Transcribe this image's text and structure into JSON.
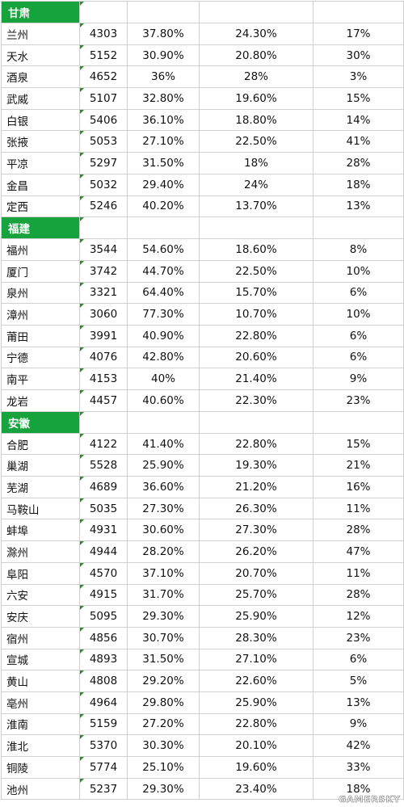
{
  "sections": [
    {
      "region": "甘肃",
      "rows": [
        {
          "city": "兰州",
          "v1": "4303",
          "v2": "37.80%",
          "v3": "24.30%",
          "v4": "17%"
        },
        {
          "city": "天水",
          "v1": "5152",
          "v2": "30.90%",
          "v3": "20.80%",
          "v4": "30%"
        },
        {
          "city": "酒泉",
          "v1": "4652",
          "v2": "36%",
          "v3": "28%",
          "v4": "3%"
        },
        {
          "city": "武威",
          "v1": "5107",
          "v2": "32.80%",
          "v3": "19.60%",
          "v4": "15%"
        },
        {
          "city": "白银",
          "v1": "5406",
          "v2": "36.10%",
          "v3": "18.80%",
          "v4": "14%"
        },
        {
          "city": "张掖",
          "v1": "5053",
          "v2": "27.10%",
          "v3": "22.50%",
          "v4": "41%"
        },
        {
          "city": "平凉",
          "v1": "5297",
          "v2": "31.50%",
          "v3": "18%",
          "v4": "28%"
        },
        {
          "city": "金昌",
          "v1": "5032",
          "v2": "29.40%",
          "v3": "24%",
          "v4": "18%"
        },
        {
          "city": "定西",
          "v1": "5246",
          "v2": "40.20%",
          "v3": "13.70%",
          "v4": "13%"
        }
      ]
    },
    {
      "region": "福建",
      "rows": [
        {
          "city": "福州",
          "v1": "3544",
          "v2": "54.60%",
          "v3": "18.60%",
          "v4": "8%"
        },
        {
          "city": "厦门",
          "v1": "3742",
          "v2": "44.70%",
          "v3": "22.50%",
          "v4": "10%"
        },
        {
          "city": "泉州",
          "v1": "3321",
          "v2": "64.40%",
          "v3": "15.70%",
          "v4": "6%"
        },
        {
          "city": "漳州",
          "v1": "3060",
          "v2": "77.30%",
          "v3": "10.70%",
          "v4": "10%"
        },
        {
          "city": "莆田",
          "v1": "3991",
          "v2": "40.90%",
          "v3": "22.80%",
          "v4": "6%"
        },
        {
          "city": "宁德",
          "v1": "4076",
          "v2": "42.80%",
          "v3": "20.60%",
          "v4": "6%"
        },
        {
          "city": "南平",
          "v1": "4153",
          "v2": "40%",
          "v3": "21.40%",
          "v4": "9%"
        },
        {
          "city": "龙岩",
          "v1": "4457",
          "v2": "40.60%",
          "v3": "22.30%",
          "v4": "23%"
        }
      ]
    },
    {
      "region": "安徽",
      "rows": [
        {
          "city": "合肥",
          "v1": "4122",
          "v2": "41.40%",
          "v3": "22.80%",
          "v4": "15%"
        },
        {
          "city": "巢湖",
          "v1": "5528",
          "v2": "25.90%",
          "v3": "19.30%",
          "v4": "21%"
        },
        {
          "city": "芜湖",
          "v1": "4689",
          "v2": "36.60%",
          "v3": "21.20%",
          "v4": "16%"
        },
        {
          "city": "马鞍山",
          "v1": "5035",
          "v2": "27.30%",
          "v3": "26.30%",
          "v4": "11%"
        },
        {
          "city": "蚌埠",
          "v1": "4931",
          "v2": "30.60%",
          "v3": "27.30%",
          "v4": "28%"
        },
        {
          "city": "滁州",
          "v1": "4944",
          "v2": "28.20%",
          "v3": "26.20%",
          "v4": "47%"
        },
        {
          "city": "阜阳",
          "v1": "4570",
          "v2": "37.10%",
          "v3": "20.70%",
          "v4": "11%"
        },
        {
          "city": "六安",
          "v1": "4915",
          "v2": "31.70%",
          "v3": "25.70%",
          "v4": "28%"
        },
        {
          "city": "安庆",
          "v1": "5095",
          "v2": "29.30%",
          "v3": "25.90%",
          "v4": "12%"
        },
        {
          "city": "宿州",
          "v1": "4856",
          "v2": "30.70%",
          "v3": "28.30%",
          "v4": "23%"
        },
        {
          "city": "宣城",
          "v1": "4893",
          "v2": "31.50%",
          "v3": "27.10%",
          "v4": "6%"
        },
        {
          "city": "黄山",
          "v1": "4808",
          "v2": "29.20%",
          "v3": "22.60%",
          "v4": "5%"
        },
        {
          "city": "亳州",
          "v1": "4964",
          "v2": "29.80%",
          "v3": "25.90%",
          "v4": "13%"
        },
        {
          "city": "淮南",
          "v1": "5159",
          "v2": "27.20%",
          "v3": "22.80%",
          "v4": "9%"
        },
        {
          "city": "淮北",
          "v1": "5370",
          "v2": "30.30%",
          "v3": "20.10%",
          "v4": "42%"
        },
        {
          "city": "铜陵",
          "v1": "5774",
          "v2": "25.10%",
          "v3": "19.60%",
          "v4": "33%"
        },
        {
          "city": "池州",
          "v1": "5237",
          "v2": "29.30%",
          "v3": "23.40%",
          "v4": "18%"
        }
      ]
    }
  ],
  "watermark": "GAMERSKY",
  "colors": {
    "header_bg": "#16a23c",
    "header_text": "#ffffff",
    "grid": "#d0d0d0",
    "marker": "#2e8b2e"
  }
}
